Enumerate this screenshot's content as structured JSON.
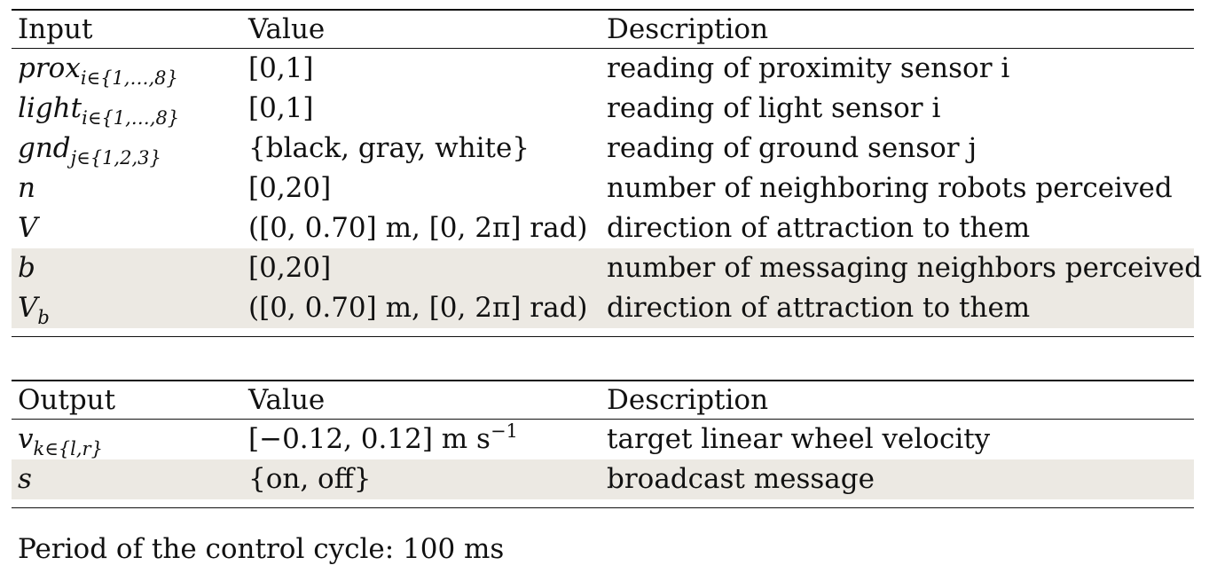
{
  "input_table": {
    "headers": {
      "col1": "Input",
      "col2": "Value",
      "col3": "Description"
    },
    "rows": [
      {
        "symbol": "prox",
        "subscript": "i∈{1,…,8}",
        "value": "[0,1]",
        "description": "reading of proximity sensor i",
        "shaded": false
      },
      {
        "symbol": "light",
        "subscript": "i∈{1,…,8}",
        "value": "[0,1]",
        "description": "reading of light sensor i",
        "shaded": false
      },
      {
        "symbol": "gnd",
        "subscript": "j∈{1,2,3}",
        "value": "{black, gray, white}",
        "description": "reading of ground sensor j",
        "shaded": false
      },
      {
        "symbol": "n",
        "subscript": "",
        "value": "[0,20]",
        "description": "number of neighboring robots perceived",
        "shaded": false
      },
      {
        "symbol": "V",
        "subscript": "",
        "value": "([0, 0.70] m, [0, 2π] rad)",
        "description": "direction of attraction to them",
        "shaded": false
      },
      {
        "symbol": "b",
        "subscript": "",
        "value": "[0,20]",
        "description": "number of messaging neighbors perceived",
        "shaded": true
      },
      {
        "symbol": "V",
        "subscript": "b",
        "value": "([0, 0.70] m, [0, 2π] rad)",
        "description": "direction of attraction to them",
        "shaded": true
      }
    ]
  },
  "output_table": {
    "headers": {
      "col1": "Output",
      "col2": "Value",
      "col3": "Description"
    },
    "rows": [
      {
        "symbol": "v",
        "subscript": "k∈{l,r}",
        "value": "[−0.12, 0.12] m s",
        "value_sup": "−1",
        "description": "target linear wheel velocity",
        "shaded": false
      },
      {
        "symbol": "s",
        "subscript": "",
        "value": "{on, off}",
        "description": "broadcast message",
        "shaded": true
      }
    ]
  },
  "footnote": "Period of the control cycle: 100 ms"
}
